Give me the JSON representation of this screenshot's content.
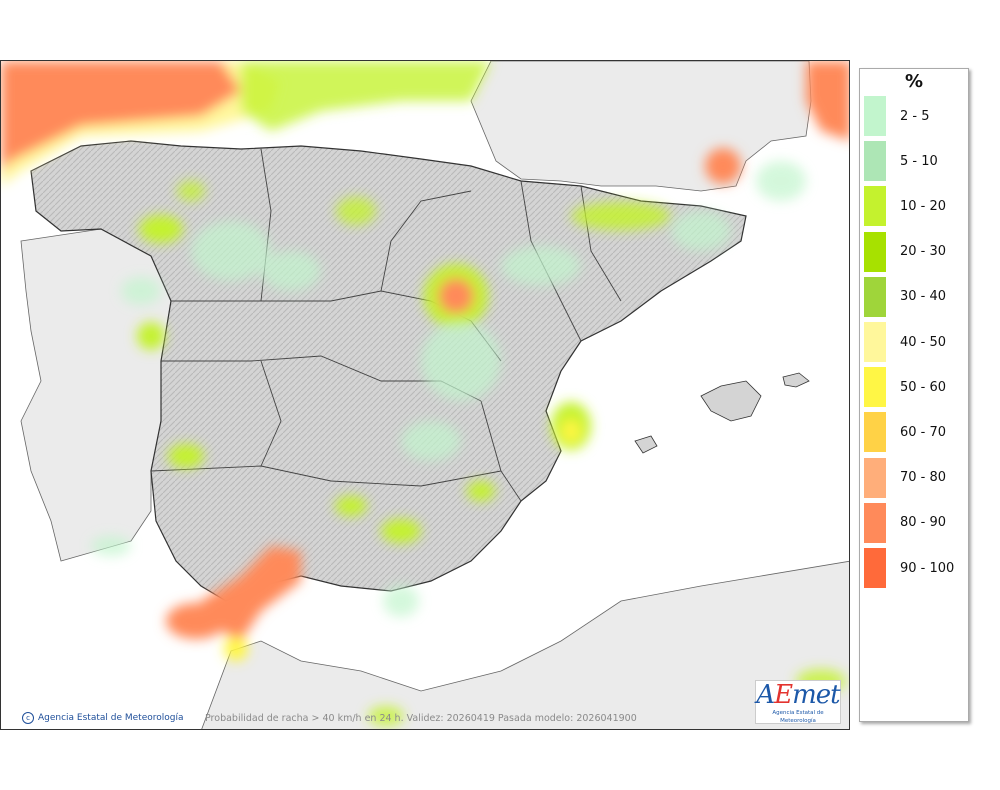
{
  "map": {
    "caption": "Probabilidad de racha > 40 km/h en 24 h. Validez: 20260419 Pasada modelo: 2026041900",
    "credit": "Agencia Estatal de Meteorología",
    "logo": {
      "text_a": "A",
      "text_e": "E",
      "text_rest": "met",
      "subtitle": "Agencia Estatal de Meteorología"
    }
  },
  "legend": {
    "unit": "%",
    "items": [
      {
        "label": "2 - 5",
        "color": "#c2f5cd"
      },
      {
        "label": "5 - 10",
        "color": "#ade6b5"
      },
      {
        "label": "10 - 20",
        "color": "#c4f22e"
      },
      {
        "label": "20 - 30",
        "color": "#a7e100"
      },
      {
        "label": "30 - 40",
        "color": "#9fd53a"
      },
      {
        "label": "40 - 50",
        "color": "#fff79b"
      },
      {
        "label": "50 - 60",
        "color": "#fff645"
      },
      {
        "label": "60 - 70",
        "color": "#ffd246"
      },
      {
        "label": "70 - 80",
        "color": "#ffae7a"
      },
      {
        "label": "80 - 90",
        "color": "#ff8a5a"
      },
      {
        "label": "90 - 100",
        "color": "#ff6a3a"
      }
    ]
  }
}
